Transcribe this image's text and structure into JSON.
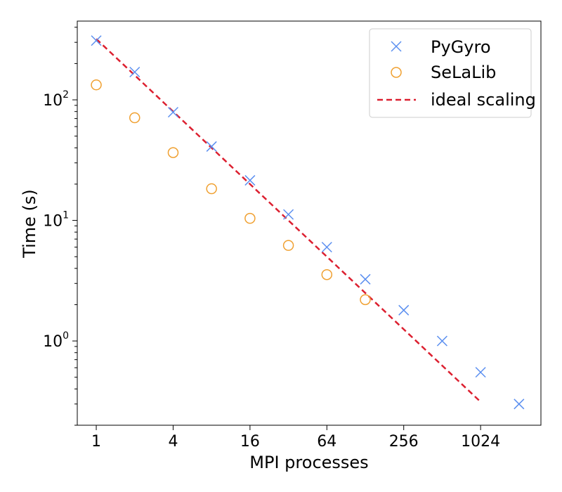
{
  "chart_data": {
    "type": "scatter",
    "xlabel": "MPI processes",
    "ylabel": "Time (s)",
    "x_scale": "log2",
    "y_scale": "log10",
    "xlim": [
      0.71,
      3040
    ],
    "ylim": [
      0.2,
      450
    ],
    "x_ticks": [
      1,
      4,
      16,
      64,
      256,
      1024
    ],
    "x_tick_labels": [
      "1",
      "4",
      "16",
      "64",
      "256",
      "1024"
    ],
    "y_ticks": [
      1,
      10,
      100
    ],
    "y_tick_labels": [
      {
        "base": "10",
        "exp": "0"
      },
      {
        "base": "10",
        "exp": "1"
      },
      {
        "base": "10",
        "exp": "2"
      }
    ],
    "legend_position": "top-right",
    "colors": {
      "pygyro": "#5b8ff0",
      "selalib": "#f0a030",
      "ideal": "#dc2030"
    },
    "series": [
      {
        "name": "PyGyro",
        "marker": "x",
        "color": "#5b8ff0",
        "x": [
          1,
          2,
          4,
          8,
          16,
          32,
          64,
          128,
          256,
          512,
          1024,
          2048
        ],
        "y": [
          310,
          170,
          79,
          41,
          21.5,
          11.2,
          6.0,
          3.25,
          1.8,
          1.0,
          0.55,
          0.3
        ]
      },
      {
        "name": "SeLaLib",
        "marker": "circle",
        "color": "#f0a030",
        "x": [
          1,
          2,
          4,
          8,
          16,
          32,
          64,
          128
        ],
        "y": [
          133,
          71,
          36.5,
          18.3,
          10.4,
          6.2,
          3.55,
          2.2
        ]
      },
      {
        "name": "ideal scaling",
        "marker": "dashed-line",
        "color": "#dc2030",
        "x": [
          1,
          1024
        ],
        "y": [
          320,
          0.3125
        ]
      }
    ]
  }
}
